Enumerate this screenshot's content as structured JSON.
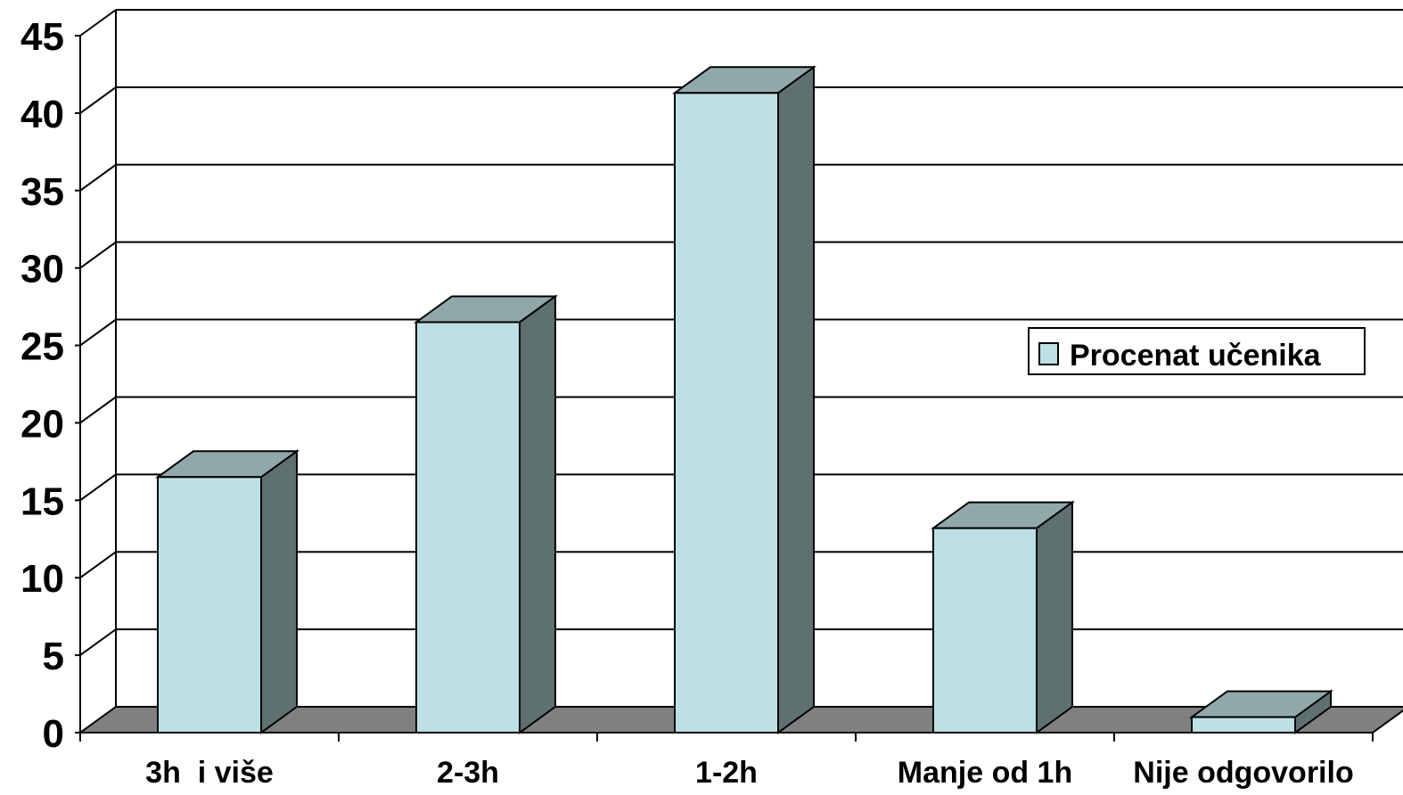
{
  "chart_data": {
    "type": "bar",
    "categories": [
      "3h  i više",
      "2-3h",
      "1-2h",
      "Manje od 1h",
      "Nije odgovorilo"
    ],
    "series": [
      {
        "name": "Procenat učenika",
        "values": [
          16.5,
          26.5,
          41.3,
          13.2,
          1.0
        ]
      }
    ],
    "title": "",
    "xlabel": "",
    "ylabel": "",
    "ylim": [
      0,
      45
    ],
    "yticks": [
      "0",
      "5",
      "10",
      "15",
      "20",
      "25",
      "30",
      "35",
      "40",
      "45"
    ],
    "grid": true,
    "legend": "right",
    "style": "3d-column",
    "colors": {
      "bar_front": "#bce0e3",
      "bar_top": "#90a8aa",
      "bar_side": "#5e7070",
      "floor": "#808080",
      "grid": "#000000"
    }
  }
}
